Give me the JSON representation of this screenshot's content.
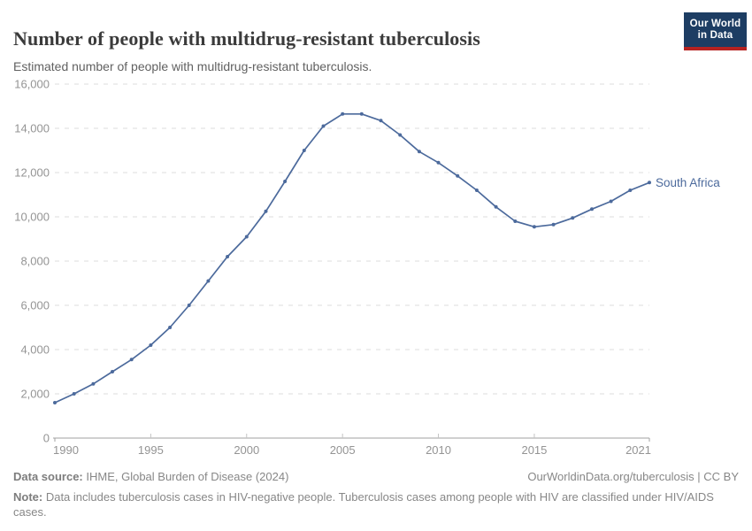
{
  "header": {
    "title": "Number of people with multidrug-resistant tuberculosis",
    "subtitle": "Estimated number of people with multidrug-resistant tuberculosis.",
    "logo": {
      "line1": "Our World",
      "line2": "in Data"
    }
  },
  "chart_data": {
    "type": "line",
    "title": "Number of people with multidrug-resistant tuberculosis",
    "xlabel": "",
    "ylabel": "",
    "xlim": [
      1990,
      2021
    ],
    "ylim": [
      0,
      16000
    ],
    "x_ticks": [
      1990,
      1995,
      2000,
      2005,
      2010,
      2015,
      2021
    ],
    "y_ticks": [
      0,
      2000,
      4000,
      6000,
      8000,
      10000,
      12000,
      14000,
      16000
    ],
    "grid": "horizontal-dashed",
    "legend_position": "end-of-line-label",
    "series": [
      {
        "name": "South Africa",
        "x": [
          1990,
          1991,
          1992,
          1993,
          1994,
          1995,
          1996,
          1997,
          1998,
          1999,
          2000,
          2001,
          2002,
          2003,
          2004,
          2005,
          2006,
          2007,
          2008,
          2009,
          2010,
          2011,
          2012,
          2013,
          2014,
          2015,
          2016,
          2017,
          2018,
          2019,
          2020,
          2021
        ],
        "values": [
          1600,
          2000,
          2450,
          3000,
          3550,
          4200,
          5000,
          6000,
          7100,
          8200,
          9100,
          10250,
          11600,
          13000,
          14100,
          14650,
          14650,
          14350,
          13700,
          12950,
          12450,
          11850,
          11200,
          10450,
          9800,
          9550,
          9650,
          9950,
          10350,
          10700,
          11200,
          11550
        ]
      }
    ],
    "colors": {
      "line": "#4c6a9c",
      "entity_label": "#4c6a9c",
      "gridline": "#dcdcdc",
      "axis_line": "#a0a0a0",
      "tick": "#c4c4c4",
      "axis_text": "#949494"
    }
  },
  "footer": {
    "data_source_label": "Data source:",
    "data_source_text": " IHME, Global Burden of Disease (2024)",
    "attribution": "OurWorldinData.org/tuberculosis | CC BY",
    "note_label": "Note:",
    "note_text": " Data includes tuberculosis cases in HIV-negative people. Tuberculosis cases among people with HIV are classified under HIV/AIDS cases."
  }
}
